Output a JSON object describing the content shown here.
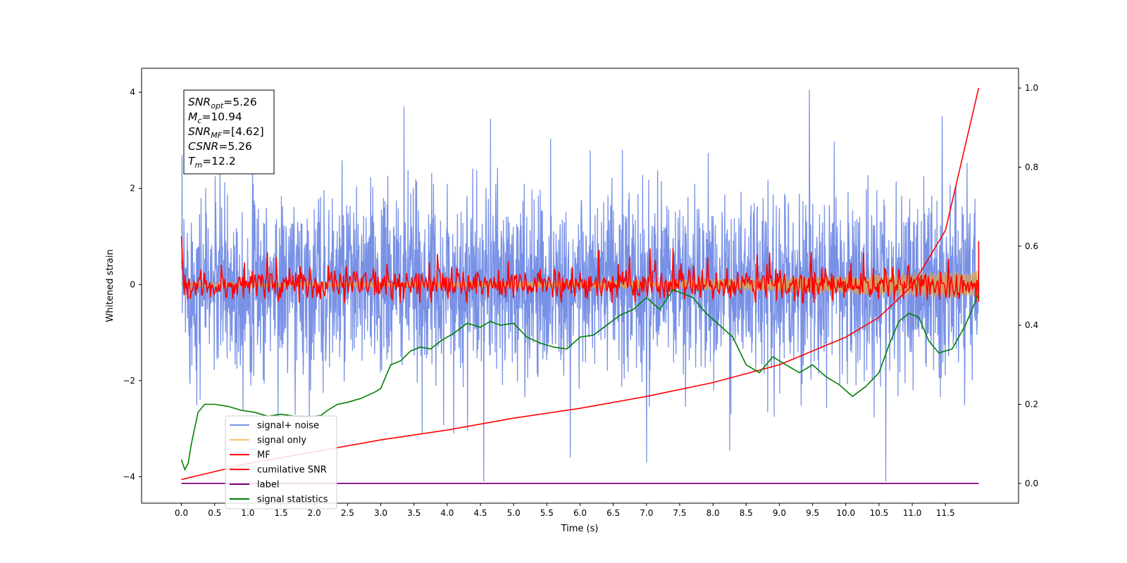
{
  "chart_data": {
    "type": "line",
    "xlabel": "Time (s)",
    "ylabel": "Whitened strain",
    "xlim": [
      -0.6,
      12.6
    ],
    "ylim": [
      -4.55,
      4.5
    ],
    "y2lim": [
      -0.05,
      1.05
    ],
    "x_ticks": [
      "0.0",
      "0.5",
      "1.0",
      "1.5",
      "2.0",
      "2.5",
      "3.0",
      "3.5",
      "4.0",
      "4.5",
      "5.0",
      "5.5",
      "6.0",
      "6.5",
      "7.0",
      "7.5",
      "8.0",
      "8.5",
      "9.0",
      "9.5",
      "10.0",
      "10.5",
      "11.0",
      "11.5"
    ],
    "y_ticks": [
      "4",
      "2",
      "0",
      "−2",
      "−4"
    ],
    "y2_ticks": [
      "1.0",
      "0.8",
      "0.6",
      "0.4",
      "0.2",
      "0.0"
    ],
    "grid": false,
    "legend_position": "lower-left",
    "colors": {
      "signal_noise": "#7891e6",
      "signal_only": "#f5c26b",
      "signal_fill": "#d4a061",
      "mf": "#ff0000",
      "cumulative_snr": "#ff0000",
      "label": "#800080",
      "signal_statistics": "#008000"
    },
    "annotation": [
      {
        "base": "SNR",
        "sub": "opt",
        "value": "=5.26"
      },
      {
        "base": "M",
        "sub": "c",
        "value": "=10.94"
      },
      {
        "base": "SNR",
        "sub": "MF",
        "value": "=[4.62]"
      },
      {
        "base": "CSNR",
        "sub": "",
        "value": "=5.26"
      },
      {
        "base": "T",
        "sub": "m",
        "value": "=12.2"
      }
    ],
    "series": [
      {
        "name": "signal+ noise",
        "axis": "left",
        "style": "noise",
        "t_range": [
          0,
          12.0
        ],
        "envelope": [
          1.8,
          -1.9
        ],
        "spikes": [
          {
            "x": 3.35,
            "y": 3.7
          },
          {
            "x": 4.65,
            "y": 3.45
          },
          {
            "x": 9.45,
            "y": 4.05
          },
          {
            "x": 11.45,
            "y": 3.5
          },
          {
            "x": 4.55,
            "y": -4.1
          },
          {
            "x": 10.6,
            "y": -4.1
          },
          {
            "x": 7.0,
            "y": -3.7
          },
          {
            "x": 5.85,
            "y": -3.6
          },
          {
            "x": 8.25,
            "y": -3.45
          }
        ]
      },
      {
        "name": "signal only",
        "axis": "left",
        "style": "chirp",
        "t_range": [
          0,
          12.0
        ],
        "amplitude": [
          0.05,
          0.3
        ]
      },
      {
        "name": "MF",
        "axis": "left",
        "style": "mf",
        "t_range": [
          0,
          12.0
        ],
        "start_value": 1.0,
        "end_value": 0.9
      },
      {
        "name": "cumilative SNR",
        "axis": "right",
        "x": [
          0.0,
          0.5,
          1.0,
          2.0,
          3.0,
          4.0,
          5.0,
          6.0,
          7.0,
          8.0,
          9.0,
          10.0,
          10.5,
          11.0,
          11.5,
          12.0
        ],
        "y": [
          0.01,
          0.03,
          0.05,
          0.08,
          0.11,
          0.135,
          0.165,
          0.19,
          0.22,
          0.255,
          0.3,
          0.37,
          0.42,
          0.5,
          0.64,
          1.0
        ]
      },
      {
        "name": "label",
        "axis": "right",
        "x": [
          0.0,
          12.0
        ],
        "y": [
          0.0,
          0.0
        ]
      },
      {
        "name": "signal statistics",
        "axis": "right",
        "x": [
          0.0,
          0.05,
          0.1,
          0.15,
          0.25,
          0.35,
          0.5,
          0.7,
          0.9,
          1.1,
          1.3,
          1.5,
          1.7,
          1.9,
          2.1,
          2.2,
          2.35,
          2.5,
          2.7,
          2.9,
          3.0,
          3.15,
          3.3,
          3.45,
          3.6,
          3.75,
          3.9,
          4.1,
          4.3,
          4.5,
          4.65,
          4.8,
          5.0,
          5.2,
          5.4,
          5.6,
          5.8,
          6.0,
          6.2,
          6.4,
          6.6,
          6.8,
          7.0,
          7.2,
          7.4,
          7.55,
          7.7,
          7.9,
          8.1,
          8.3,
          8.5,
          8.7,
          8.9,
          9.1,
          9.3,
          9.5,
          9.7,
          9.9,
          10.1,
          10.3,
          10.5,
          10.65,
          10.8,
          10.95,
          11.1,
          11.25,
          11.4,
          11.6,
          11.8,
          12.0
        ],
        "y": [
          0.06,
          0.035,
          0.05,
          0.1,
          0.18,
          0.2,
          0.2,
          0.195,
          0.185,
          0.18,
          0.17,
          0.175,
          0.17,
          0.168,
          0.172,
          0.185,
          0.2,
          0.205,
          0.215,
          0.23,
          0.24,
          0.3,
          0.31,
          0.335,
          0.345,
          0.34,
          0.36,
          0.38,
          0.405,
          0.395,
          0.41,
          0.4,
          0.405,
          0.37,
          0.355,
          0.345,
          0.34,
          0.37,
          0.375,
          0.4,
          0.425,
          0.44,
          0.47,
          0.44,
          0.49,
          0.48,
          0.47,
          0.43,
          0.4,
          0.37,
          0.3,
          0.28,
          0.32,
          0.3,
          0.28,
          0.3,
          0.27,
          0.25,
          0.22,
          0.245,
          0.28,
          0.35,
          0.41,
          0.43,
          0.42,
          0.36,
          0.33,
          0.34,
          0.4,
          0.48
        ]
      }
    ]
  }
}
